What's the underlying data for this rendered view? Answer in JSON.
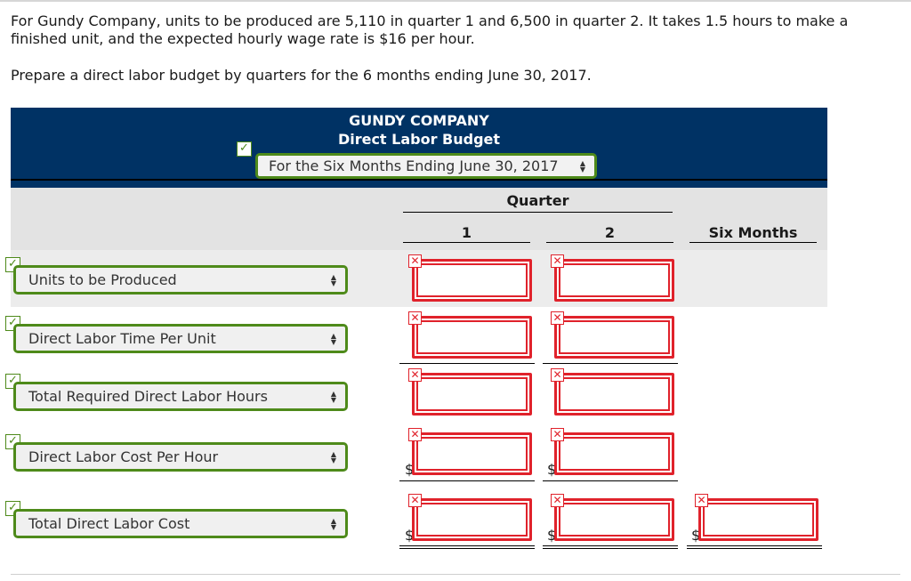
{
  "intro": {
    "line1": "For Gundy Company, units to be produced are 5,110 in quarter 1 and 6,500 in quarter 2. It takes 1.5 hours to make a finished unit, and the expected hourly wage rate is $16 per hour.",
    "line2": "Prepare a direct labor budget by quarters for the 6 months ending June 30, 2017."
  },
  "header": {
    "company": "GUNDY COMPANY",
    "title": "Direct Labor Budget",
    "period_selected": "For the Six Months Ending June 30, 2017"
  },
  "columns": {
    "group_label": "Quarter",
    "q1": "1",
    "q2": "2",
    "total": "Six Months"
  },
  "rows": [
    {
      "label": "Units to be Produced"
    },
    {
      "label": "Direct Labor Time Per Unit"
    },
    {
      "label": "Total Required Direct Labor Hours"
    },
    {
      "label": "Direct Labor Cost Per Hour"
    },
    {
      "label": "Total Direct Labor Cost"
    }
  ],
  "symbols": {
    "check": "✓",
    "cross": "✕",
    "dollar": "$",
    "up": "▲",
    "down": "▼"
  },
  "colors": {
    "header_bg": "#003264",
    "correct": "#4e8a1a",
    "incorrect": "#e0222b"
  }
}
